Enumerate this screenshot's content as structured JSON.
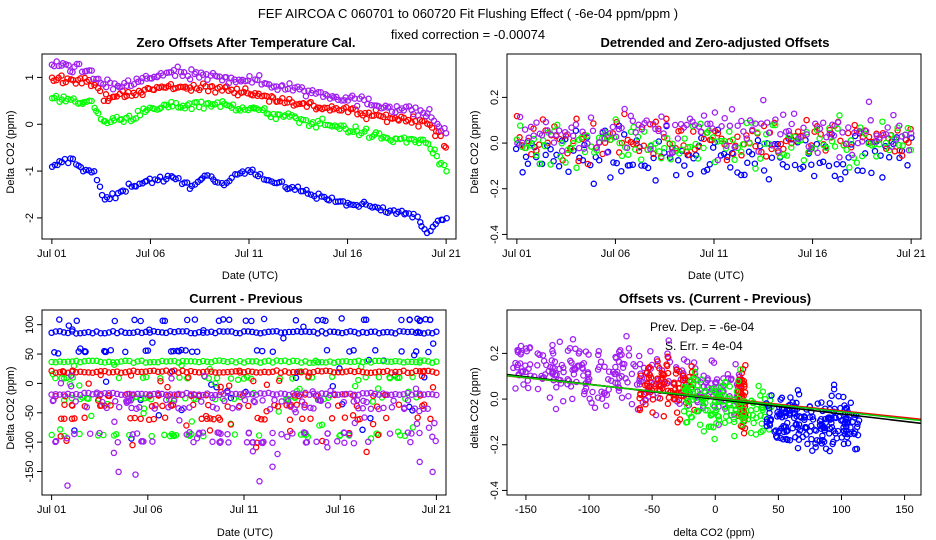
{
  "header": {
    "title": "FEF    AIRCOA C    060701 to 060720   Fit Flushing Effect ( -6e-04 ppm/ppm )",
    "subtitle": "fixed correction = -0.00074"
  },
  "colors": {
    "blue": "#0000ff",
    "red": "#ff0000",
    "green": "#00ff00",
    "purple": "#a020f0",
    "fit_red": "#ff0000",
    "fit_green": "#00cc00",
    "fit_black": "#000000"
  },
  "chart_data": [
    {
      "id": "p1",
      "type": "scatter",
      "title": "Zero Offsets After Temperature Cal.",
      "xlabel": "Date (UTC)",
      "ylabel": "Delta CO2 (ppm)",
      "xlim": [
        0.5,
        21.5
      ],
      "ylim": [
        -2.45,
        1.5
      ],
      "x_ticks": [
        {
          "v": 1,
          "label": "Jul 01"
        },
        {
          "v": 6,
          "label": "Jul 06"
        },
        {
          "v": 11,
          "label": "Jul 11"
        },
        {
          "v": 16,
          "label": "Jul 16"
        },
        {
          "v": 21,
          "label": "Jul 21"
        }
      ],
      "y_ticks": [
        {
          "v": -2,
          "label": "-2"
        },
        {
          "v": -1,
          "label": "-1"
        },
        {
          "v": 0,
          "label": "0"
        },
        {
          "v": 1,
          "label": "1"
        }
      ],
      "series": [
        {
          "name": "blue",
          "color": "blue",
          "trend": [
            [
              1,
              -0.95
            ],
            [
              1.5,
              -0.8
            ],
            [
              2,
              -0.75
            ],
            [
              2.6,
              -0.95
            ],
            [
              3.2,
              -1.05
            ],
            [
              3.6,
              -1.6
            ],
            [
              4.2,
              -1.55
            ],
            [
              5,
              -1.3
            ],
            [
              6,
              -1.2
            ],
            [
              7,
              -1.15
            ],
            [
              8,
              -1.3
            ],
            [
              9,
              -1.1
            ],
            [
              9.6,
              -1.35
            ],
            [
              10.5,
              -1.0
            ],
            [
              11,
              -0.95
            ],
            [
              12,
              -1.2
            ],
            [
              13,
              -1.35
            ],
            [
              14,
              -1.45
            ],
            [
              15,
              -1.6
            ],
            [
              16,
              -1.7
            ],
            [
              17,
              -1.75
            ],
            [
              18,
              -1.85
            ],
            [
              19,
              -1.9
            ],
            [
              19.5,
              -2.0
            ],
            [
              20,
              -2.3
            ],
            [
              20.5,
              -2.1
            ],
            [
              21,
              -1.95
            ]
          ],
          "noise": 0.06,
          "n": 150
        },
        {
          "name": "red",
          "color": "red",
          "trend": [
            [
              1,
              0.95
            ],
            [
              2,
              1.0
            ],
            [
              3,
              0.9
            ],
            [
              3.6,
              0.6
            ],
            [
              5,
              0.62
            ],
            [
              6,
              0.75
            ],
            [
              7,
              0.8
            ],
            [
              8,
              0.8
            ],
            [
              9,
              0.75
            ],
            [
              10,
              0.75
            ],
            [
              11,
              0.7
            ],
            [
              12,
              0.55
            ],
            [
              13,
              0.5
            ],
            [
              14,
              0.4
            ],
            [
              15,
              0.35
            ],
            [
              16,
              0.3
            ],
            [
              17,
              0.2
            ],
            [
              18,
              0.15
            ],
            [
              19,
              0.1
            ],
            [
              20,
              0.05
            ],
            [
              20.5,
              -0.15
            ],
            [
              21,
              -0.55
            ]
          ],
          "noise": 0.08,
          "n": 170
        },
        {
          "name": "green",
          "color": "green",
          "trend": [
            [
              1,
              0.55
            ],
            [
              2,
              0.55
            ],
            [
              3,
              0.45
            ],
            [
              3.6,
              0.05
            ],
            [
              5,
              0.15
            ],
            [
              6,
              0.3
            ],
            [
              7,
              0.4
            ],
            [
              8,
              0.42
            ],
            [
              9,
              0.45
            ],
            [
              10,
              0.38
            ],
            [
              11,
              0.35
            ],
            [
              12,
              0.22
            ],
            [
              13,
              0.15
            ],
            [
              14,
              0.05
            ],
            [
              15,
              0.0
            ],
            [
              16,
              -0.1
            ],
            [
              17,
              -0.2
            ],
            [
              18,
              -0.3
            ],
            [
              19,
              -0.35
            ],
            [
              20,
              -0.35
            ],
            [
              20.5,
              -0.7
            ],
            [
              21,
              -1.05
            ]
          ],
          "noise": 0.08,
          "n": 170
        },
        {
          "name": "purple",
          "color": "purple",
          "trend": [
            [
              1,
              1.2
            ],
            [
              1.5,
              1.3
            ],
            [
              2,
              1.2
            ],
            [
              3,
              1.1
            ],
            [
              3.6,
              0.8
            ],
            [
              5,
              0.85
            ],
            [
              6,
              1.0
            ],
            [
              7,
              1.1
            ],
            [
              8,
              1.05
            ],
            [
              9,
              1.0
            ],
            [
              10,
              1.0
            ],
            [
              11,
              0.95
            ],
            [
              12,
              0.85
            ],
            [
              13,
              0.8
            ],
            [
              14,
              0.7
            ],
            [
              15,
              0.65
            ],
            [
              16,
              0.55
            ],
            [
              17,
              0.45
            ],
            [
              18,
              0.4
            ],
            [
              19,
              0.3
            ],
            [
              20,
              0.25
            ],
            [
              20.5,
              0.05
            ],
            [
              21,
              -0.25
            ]
          ],
          "noise": 0.1,
          "n": 170
        }
      ]
    },
    {
      "id": "p2",
      "type": "scatter",
      "title": "Detrended and Zero-adjusted Offsets",
      "xlabel": "Date (UTC)",
      "ylabel": "Delta CO2 (ppm)",
      "xlim": [
        0.5,
        21.5
      ],
      "ylim": [
        -0.42,
        0.39
      ],
      "x_ticks": [
        {
          "v": 1,
          "label": "Jul 01"
        },
        {
          "v": 6,
          "label": "Jul 06"
        },
        {
          "v": 11,
          "label": "Jul 11"
        },
        {
          "v": 16,
          "label": "Jul 16"
        },
        {
          "v": 21,
          "label": "Jul 21"
        }
      ],
      "y_ticks": [
        {
          "v": -0.4,
          "label": "-0.4"
        },
        {
          "v": -0.2,
          "label": "-0.2"
        },
        {
          "v": 0,
          "label": "0.0"
        },
        {
          "v": 0.2,
          "label": "0.2"
        }
      ],
      "series": [
        {
          "name": "blue",
          "color": "blue",
          "trend": [
            [
              1,
              -0.05
            ],
            [
              11,
              -0.06
            ],
            [
              21,
              -0.05
            ]
          ],
          "noise": 0.09,
          "n": 140
        },
        {
          "name": "red",
          "color": "red",
          "trend": [
            [
              1,
              0.02
            ],
            [
              11,
              0.02
            ],
            [
              21,
              0.02
            ]
          ],
          "noise": 0.08,
          "n": 140
        },
        {
          "name": "green",
          "color": "green",
          "trend": [
            [
              1,
              0.0
            ],
            [
              11,
              0.0
            ],
            [
              21,
              0.0
            ]
          ],
          "noise": 0.09,
          "n": 140
        },
        {
          "name": "purple",
          "color": "purple",
          "trend": [
            [
              1,
              0.05
            ],
            [
              11,
              0.05
            ],
            [
              21,
              0.05
            ]
          ],
          "noise": 0.08,
          "n": 140
        }
      ]
    },
    {
      "id": "p3",
      "type": "scatter",
      "title": "Current - Previous",
      "xlabel": "Date (UTC)",
      "ylabel": "Delta CO2 (ppm)",
      "xlim": [
        0.5,
        21.5
      ],
      "ylim": [
        -190,
        125
      ],
      "x_ticks": [
        {
          "v": 1,
          "label": "Jul 01"
        },
        {
          "v": 6,
          "label": "Jul 06"
        },
        {
          "v": 11,
          "label": "Jul 11"
        },
        {
          "v": 16,
          "label": "Jul 16"
        },
        {
          "v": 21,
          "label": "Jul 21"
        }
      ],
      "y_ticks": [
        {
          "v": -150,
          "label": "-150"
        },
        {
          "v": -100,
          "label": "-100"
        },
        {
          "v": -50,
          "label": "-50"
        },
        {
          "v": 0,
          "label": "0"
        },
        {
          "v": 50,
          "label": "50"
        },
        {
          "v": 100,
          "label": "100"
        }
      ],
      "bands": [
        {
          "color": "blue",
          "levels": [
            87,
            108,
            55
          ],
          "scatter": [
            -100,
            115
          ]
        },
        {
          "color": "green",
          "levels": [
            37,
            -88,
            -25,
            10
          ],
          "scatter": [
            -95,
            40
          ]
        },
        {
          "color": "red",
          "levels": [
            20,
            -20,
            -38,
            -60
          ],
          "scatter": [
            -120,
            25
          ]
        },
        {
          "color": "purple",
          "levels": [
            -18,
            -30,
            -42,
            -85,
            -100
          ],
          "scatter": [
            -180,
            20
          ]
        }
      ]
    },
    {
      "id": "p4",
      "type": "scatter",
      "title": "Offsets vs. (Current - Previous)",
      "xlabel": "delta CO2 (ppm)",
      "ylabel": "delta CO2 (ppm)",
      "xlim": [
        -165,
        163
      ],
      "ylim": [
        -0.42,
        0.39
      ],
      "x_ticks": [
        {
          "v": -150,
          "label": "-150"
        },
        {
          "v": -100,
          "label": "-100"
        },
        {
          "v": -50,
          "label": "-50"
        },
        {
          "v": 0,
          "label": "0"
        },
        {
          "v": 50,
          "label": "50"
        },
        {
          "v": 100,
          "label": "100"
        },
        {
          "v": 150,
          "label": "150"
        }
      ],
      "y_ticks": [
        {
          "v": -0.4,
          "label": "-0.4"
        },
        {
          "v": -0.2,
          "label": "-0.2"
        },
        {
          "v": 0,
          "label": "0.0"
        },
        {
          "v": 0.2,
          "label": "0.2"
        }
      ],
      "annotation_1": "Prev. Dep. =  -6e-04",
      "annotation_2": "S. Err. =  4e-04",
      "fits": [
        {
          "color": "fit_black",
          "slope": -0.00065,
          "intercept": 0.0
        },
        {
          "color": "fit_red",
          "slope": -0.00058,
          "intercept": 0.006
        },
        {
          "color": "fit_green",
          "slope": -0.0006,
          "intercept": 0.004
        }
      ],
      "clusters": [
        {
          "color": "purple",
          "x_range": [
            -160,
            20
          ],
          "center_y": 0.05,
          "noise": 0.11,
          "n": 300
        },
        {
          "color": "red",
          "x_range": [
            -60,
            -15
          ],
          "center_y": 0.03,
          "noise": 0.1,
          "n": 90
        },
        {
          "color": "red",
          "x_range": [
            18,
            24
          ],
          "center_y": 0.0,
          "noise": 0.12,
          "n": 60
        },
        {
          "color": "green",
          "x_range": [
            -25,
            45
          ],
          "center_y": -0.02,
          "noise": 0.1,
          "n": 140
        },
        {
          "color": "blue",
          "x_range": [
            40,
            115
          ],
          "center_y": -0.05,
          "noise": 0.1,
          "n": 200
        }
      ]
    }
  ]
}
